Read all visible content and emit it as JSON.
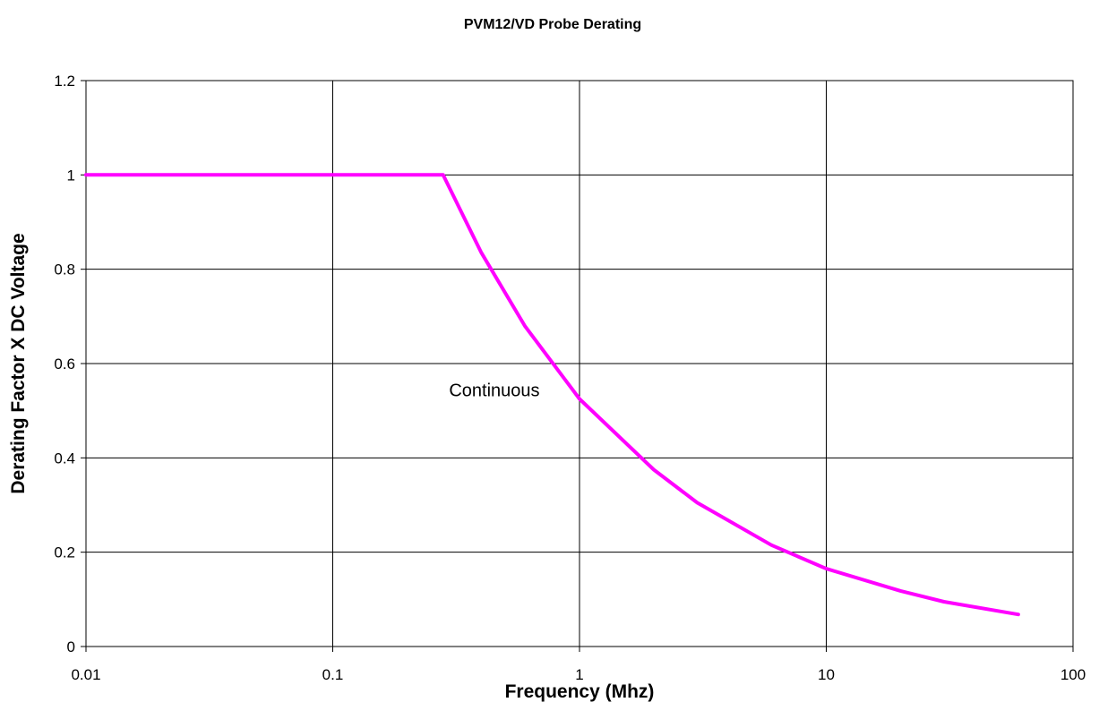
{
  "chart_data": {
    "type": "line",
    "title": "PVM12/VD Probe Derating",
    "xlabel": "Frequency (Mhz)",
    "ylabel": "Derating Factor X DC Voltage",
    "x_scale": "log",
    "xlim": [
      0.01,
      100
    ],
    "ylim": [
      0,
      1.2
    ],
    "x_ticks": [
      0.01,
      0.1,
      1,
      10,
      100
    ],
    "x_tick_labels": [
      "0.01",
      "0.1",
      "1",
      "10",
      "100"
    ],
    "y_ticks": [
      0,
      0.2,
      0.4,
      0.6,
      0.8,
      1,
      1.2
    ],
    "y_tick_labels": [
      "0",
      "0.2",
      "0.4",
      "0.6",
      "0.8",
      "1",
      "1.2"
    ],
    "grid": true,
    "series": [
      {
        "name": "Continuous",
        "color": "#ff00ff",
        "x": [
          0.01,
          0.28,
          0.4,
          0.6,
          1,
          2,
          3,
          6,
          10,
          20,
          30,
          60
        ],
        "y": [
          1.0,
          1.0,
          0.835,
          0.68,
          0.525,
          0.375,
          0.305,
          0.215,
          0.165,
          0.118,
          0.095,
          0.068
        ]
      }
    ],
    "annotations": [
      {
        "text": "Continuous",
        "x": 0.4,
        "y": 0.525
      }
    ]
  }
}
